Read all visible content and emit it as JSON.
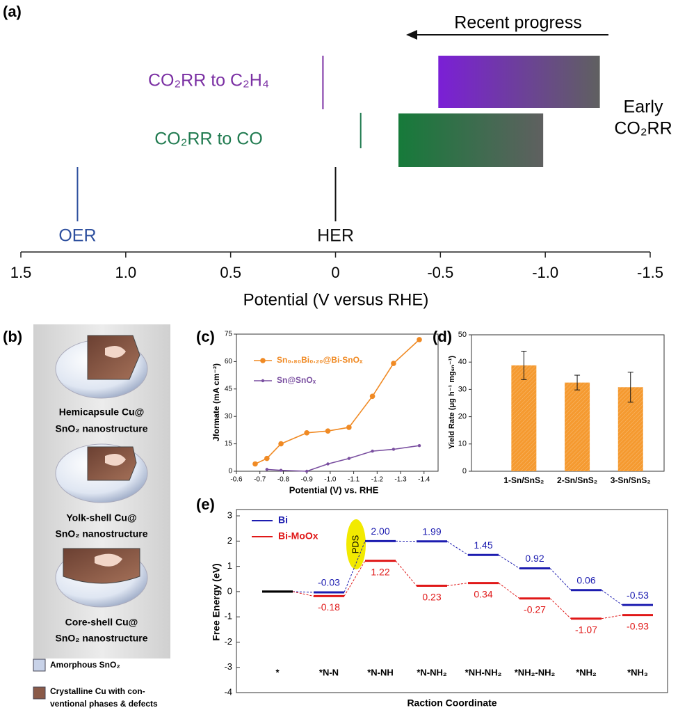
{
  "chart_data": [
    {
      "type": "potential-scale",
      "panel_label": "(a)",
      "xlabel": "Potential (V versus RHE)",
      "xlim": [
        1.5,
        -1.5
      ],
      "xticks": [
        1.5,
        {
          "value": 1,
          "label": "1.0"
        },
        0.5,
        0,
        -0.5,
        {
          "value": -1,
          "label": "-1.0"
        },
        -1.5
      ],
      "markers": [
        {
          "name": "OER",
          "value": 1.23,
          "color": "#2d4f9e"
        },
        {
          "name": "HER",
          "value": 0,
          "color": "#111111"
        },
        {
          "name": "CO₂RR to C₂H₄",
          "value": 0.06,
          "color": "#7a2fa3"
        },
        {
          "name": "CO₂RR to CO",
          "value": -0.12,
          "color": "#1f7a4f"
        }
      ],
      "ranges": [
        {
          "values": [
            -0.49,
            -1.26
          ],
          "colors": [
            "#7b1fd6",
            "#5f6060"
          ]
        },
        {
          "values": [
            -0.3,
            -0.99
          ],
          "colors": [
            "#167a3a",
            "#5f6060"
          ]
        }
      ],
      "arrow_label": "Recent progress",
      "side_label": [
        "Early",
        "CO₂RR"
      ]
    },
    {
      "type": "line",
      "panel_label": "(c)",
      "xlabel": "Potential (V) vs. RHE",
      "ylabel": "Jformate (mA cm⁻²)",
      "xlim": [
        -0.6,
        -1.46
      ],
      "xticks": [
        -0.6,
        -0.7,
        -0.8,
        -0.9,
        {
          "value": -1,
          "label": "-1.0"
        },
        -1.1,
        -1.2,
        -1.3,
        -1.4
      ],
      "ylim": [
        0,
        75
      ],
      "yticks": [
        0,
        15,
        30,
        45,
        60,
        75
      ],
      "x": [
        -0.68,
        -0.73,
        -0.79,
        -0.9,
        -0.99,
        -1.08,
        -1.18,
        -1.27,
        -1.38
      ],
      "series": [
        {
          "name": "Sn₀.₈₀Bi₀.₂₀@Bi-SnOₓ",
          "color": "#f08a24",
          "values": [
            4,
            7,
            15,
            21,
            22,
            24,
            41,
            59,
            72
          ]
        },
        {
          "name": "Sn@SnOₓ",
          "color": "#7a4fa0",
          "values": [
            null,
            1,
            0.5,
            0,
            4,
            7,
            11,
            12,
            14
          ]
        }
      ]
    },
    {
      "type": "bar",
      "panel_label": "(d)",
      "ylabel": "Yield Rate (μg h⁻¹ mgₛₙ⁻¹)",
      "categories": [
        "1-Sn/SnS₂",
        "2-Sn/SnS₂",
        "3-Sn/SnS₂"
      ],
      "values": [
        38.8,
        32.5,
        30.8
      ],
      "errors": [
        5.2,
        2.7,
        5.5
      ],
      "color": "#f59a30",
      "ylim": [
        0,
        50
      ],
      "yticks": [
        0,
        10,
        20,
        30,
        40,
        50
      ]
    },
    {
      "type": "energy-profile",
      "panel_label": "(e)",
      "xlabel": "Raction Coordinate",
      "ylabel": "Free Energy (eV)",
      "categories": [
        "*",
        "*N-N",
        "*N-NH",
        "*N-NH₂",
        "*NH-NH₂",
        "*NH₂-NH₂",
        "*NH₂",
        "*NH₃"
      ],
      "ylim": [
        -4,
        3.25
      ],
      "yticks": [
        -4,
        -3,
        -2,
        -1,
        0,
        1,
        2,
        3
      ],
      "origin_color": "#000000",
      "annotation": "PDS",
      "series": [
        {
          "name": "Bi",
          "color": "#1c1cb0",
          "values": [
            0,
            -0.03,
            2.0,
            1.99,
            1.45,
            0.92,
            0.06,
            -0.53
          ],
          "value_labels": [
            null,
            "-0.03",
            "2.00",
            "1.99",
            "1.45",
            "0.92",
            "0.06",
            "-0.53"
          ]
        },
        {
          "name": "Bi-MoOx",
          "color": "#e01818",
          "values": [
            0,
            -0.18,
            1.22,
            0.23,
            0.34,
            -0.27,
            -1.07,
            -0.93
          ],
          "value_labels": [
            null,
            "-0.18",
            "1.22",
            "0.23",
            "0.34",
            "-0.27",
            "-1.07",
            "-0.93"
          ]
        }
      ]
    }
  ],
  "diagram_b": {
    "panel_label": "(b)",
    "structures": [
      {
        "caption": [
          "Hemicapsule Cu@",
          "SnO₂ nanostructure"
        ]
      },
      {
        "caption": [
          "Yolk-shell Cu@",
          "SnO₂ nanostructure"
        ]
      },
      {
        "caption": [
          "Core-shell Cu@",
          "SnO₂ nanostructure"
        ]
      }
    ],
    "legend": [
      {
        "label": [
          "Amorphous SnO₂"
        ]
      },
      {
        "label": [
          "Crystalline Cu with con-",
          "ventional phases & defects"
        ]
      }
    ]
  }
}
